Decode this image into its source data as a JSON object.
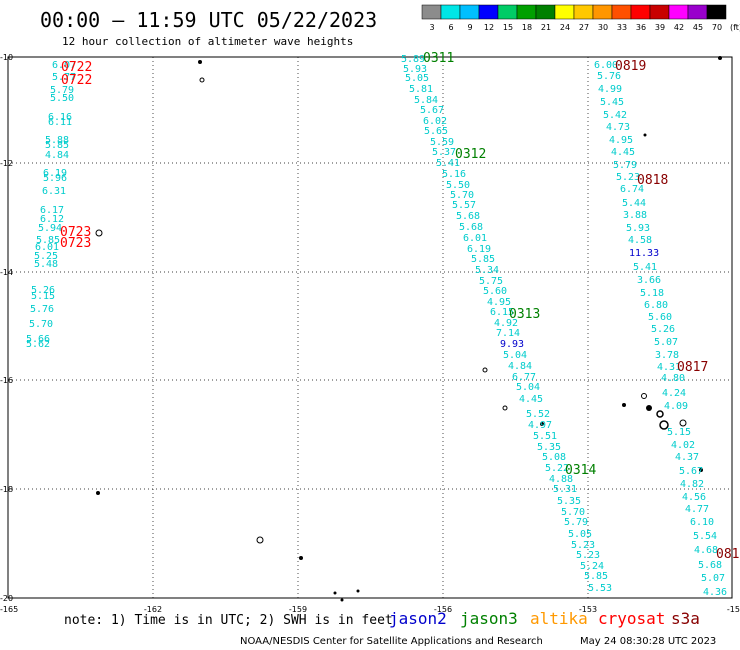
{
  "title": "00:00 – 11:59 UTC 05/22/2023",
  "subtitle": "12 hour collection of altimeter wave heights",
  "colorbar": {
    "labels": [
      "3",
      "6",
      "9",
      "12",
      "15",
      "18",
      "21",
      "24",
      "27",
      "30",
      "33",
      "36",
      "39",
      "42",
      "45",
      "70",
      "(ft)"
    ],
    "colors": [
      "#8c8c8c",
      "#00e6e6",
      "#00bfff",
      "#0000ff",
      "#00cc66",
      "#00a000",
      "#008000",
      "#ffff00",
      "#ffc800",
      "#ff9600",
      "#ff5000",
      "#ff0000",
      "#c80000",
      "#ff00ff",
      "#9900cc",
      "#000000"
    ]
  },
  "lat_ticks": [
    "-10",
    "-12",
    "-14",
    "-16",
    "-18",
    "-20"
  ],
  "lon_ticks": [
    "-165",
    "-162",
    "-159",
    "-156",
    "-153",
    "-15"
  ],
  "colors": {
    "cyan": "#00cccc",
    "blue": "#0000cc",
    "green": "#008000",
    "red": "#ff0000",
    "darkred": "#880000",
    "orange": "#ff9900"
  },
  "tracks": [
    {
      "color": "cyan",
      "values": [
        "5.89",
        "5.93",
        "5.05",
        "5.81",
        "5.84",
        "5.67",
        "6.02",
        "5.65",
        "5.59",
        "5.37",
        "5.41",
        "5.16",
        "5.50",
        "5.70",
        "5.57",
        "5.68",
        "5.68",
        "6.01",
        "6.19",
        "5.85",
        "5.34",
        "5.75",
        "5.60",
        "4.95",
        "6.15",
        "4.92",
        "7.14",
        "5.04",
        "4.84",
        "6.77",
        "5.04",
        "4.45",
        "5.52",
        "4.97",
        "5.51",
        "5.35",
        "5.08",
        "5.22",
        "4.88",
        "5.31",
        "5.35",
        "5.70",
        "5.79",
        "5.05",
        "5.23",
        "5.23",
        "5.24",
        "5.85",
        "5.53"
      ]
    },
    {
      "color": "blue",
      "values": [
        "9.93"
      ]
    },
    {
      "color": "cyan",
      "values": [
        "6.00",
        "5.76",
        "4.99",
        "5.45",
        "5.42",
        "4.73",
        "4.95",
        "4.45",
        "5.79",
        "5.23",
        "6.74",
        "5.44",
        "3.88",
        "5.93",
        "4.58",
        "5.41",
        "3.66",
        "5.18",
        "6.80",
        "5.60",
        "5.26",
        "5.07",
        "3.78",
        "4.31",
        "4.80",
        "4.24",
        "4.09",
        "5.15",
        "4.02",
        "4.37",
        "5.67",
        "4.82",
        "4.56",
        "4.77",
        "6.10",
        "5.54",
        "4.68",
        "5.68",
        "5.07",
        "4.36"
      ]
    },
    {
      "color": "blue",
      "values": [
        "11.33"
      ]
    },
    {
      "color": "cyan",
      "values": [
        "6.07",
        "5.77",
        "5.79",
        "5.50",
        "6.16",
        "6.11",
        "5.88",
        "5.85",
        "4.84",
        "6.19",
        "5.96",
        "6.31",
        "6.17",
        "6.12",
        "5.94",
        "5.85",
        "6.01",
        "5.25",
        "5.48",
        "5.26",
        "5.15",
        "5.76",
        "5.70",
        "5.66",
        "5.62"
      ]
    }
  ],
  "times": [
    {
      "color": "green",
      "label": "0311"
    },
    {
      "color": "green",
      "label": "0312"
    },
    {
      "color": "green",
      "label": "0313"
    },
    {
      "color": "green",
      "label": "0314"
    },
    {
      "color": "darkred",
      "label": "0819"
    },
    {
      "color": "darkred",
      "label": "0818"
    },
    {
      "color": "darkred",
      "label": "0817"
    },
    {
      "color": "darkred",
      "label": "081"
    },
    {
      "color": "red",
      "label": "0722"
    },
    {
      "color": "red",
      "label": "0722"
    },
    {
      "color": "red",
      "label": "0723"
    },
    {
      "color": "red",
      "label": "0723"
    }
  ],
  "note": "note: 1) Time is in UTC; 2) SWH is in feet",
  "satellites": [
    {
      "label": "jason2",
      "color": "blue"
    },
    {
      "label": "jason3",
      "color": "green"
    },
    {
      "label": "altika",
      "color": "orange"
    },
    {
      "label": "cryosat",
      "color": "red"
    },
    {
      "label": "s3a",
      "color": "darkred"
    }
  ],
  "credit": "NOAA/NESDIS Center for Satellite Applications and Research",
  "timestamp": "May 24 08:30:28 UTC 2023"
}
